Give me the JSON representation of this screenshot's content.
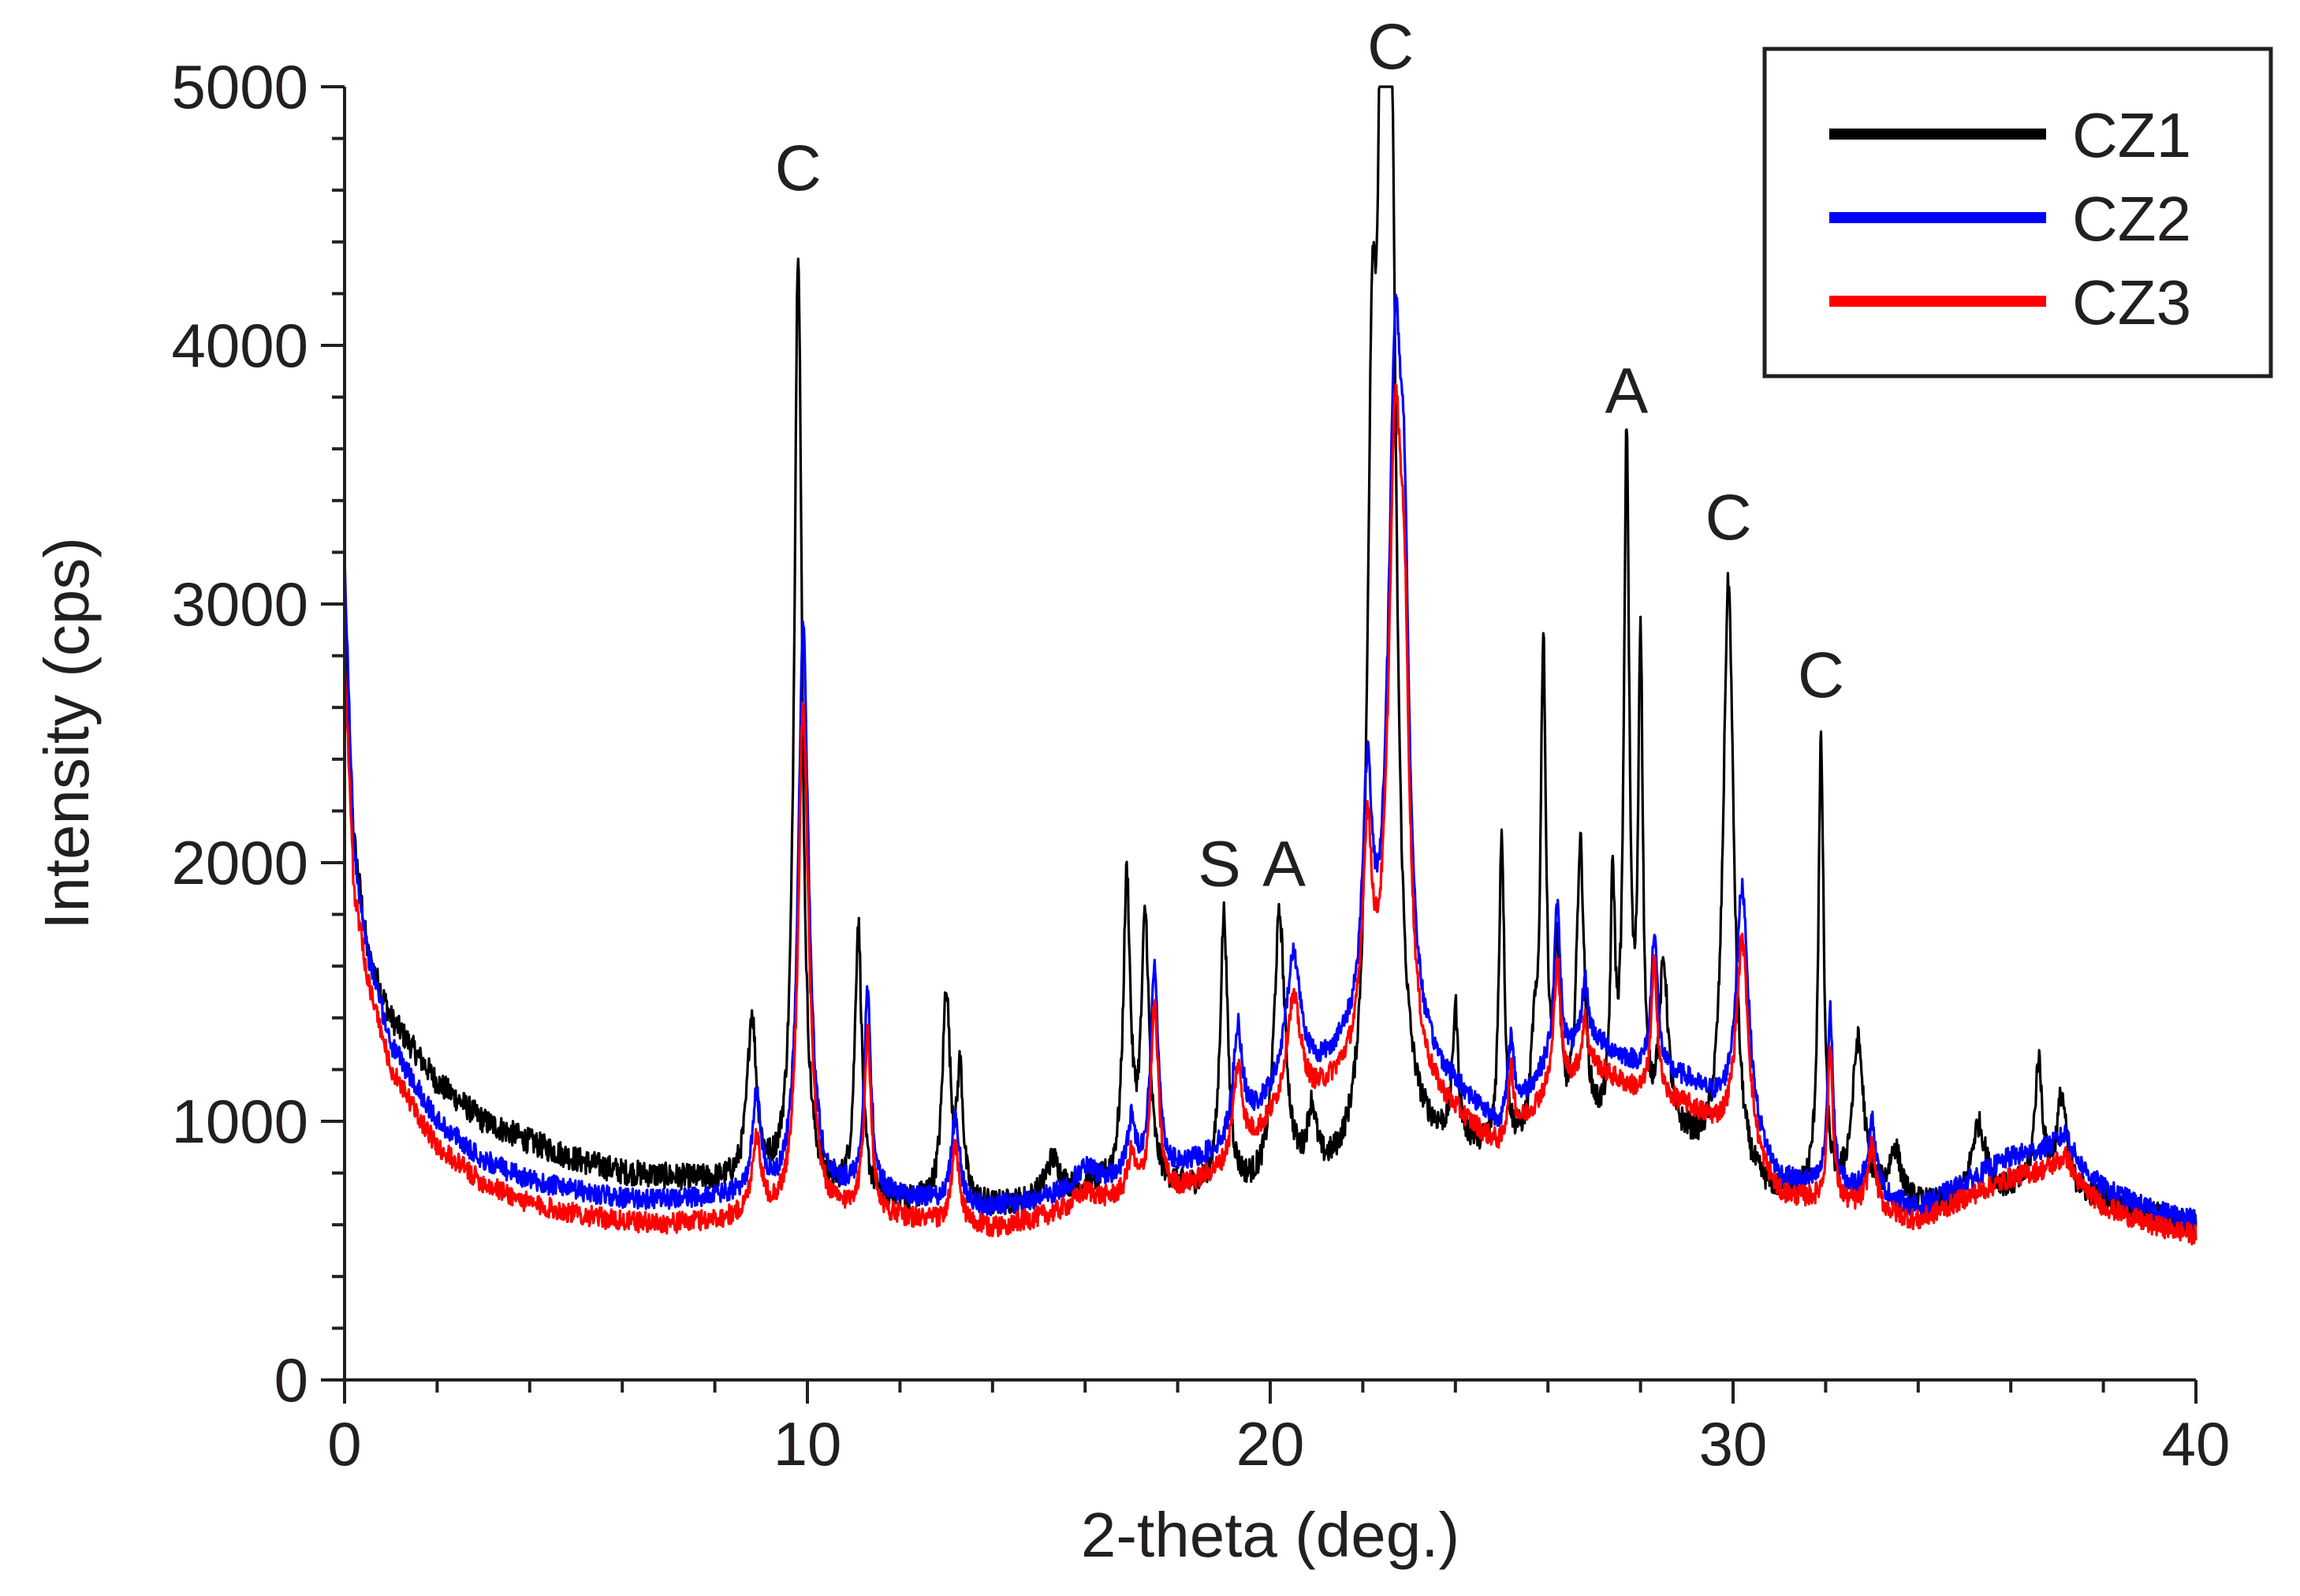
{
  "chart_data": {
    "type": "line",
    "title": "",
    "xlabel": "2-theta (deg.)",
    "ylabel": "Intensity (cps)",
    "xlim": [
      0,
      40
    ],
    "ylim": [
      0,
      5000
    ],
    "x_ticks": [
      0,
      10,
      20,
      30,
      40
    ],
    "y_ticks": [
      0,
      1000,
      2000,
      3000,
      4000,
      5000
    ],
    "x_minor_step": 2,
    "y_minor_step": 200,
    "grid": false,
    "legend_position": "top-right",
    "series": [
      {
        "name": "CZ1",
        "color": "#000000",
        "baseline": [
          [
            0,
            2900
          ],
          [
            0.2,
            2100
          ],
          [
            0.5,
            1650
          ],
          [
            1,
            1400
          ],
          [
            2,
            1150
          ],
          [
            3,
            1000
          ],
          [
            4,
            920
          ],
          [
            5,
            850
          ],
          [
            6,
            800
          ],
          [
            7,
            780
          ],
          [
            8,
            760
          ],
          [
            9,
            740
          ],
          [
            10,
            710
          ],
          [
            11,
            690
          ],
          [
            12,
            680
          ],
          [
            13,
            670
          ],
          [
            14,
            660
          ],
          [
            15,
            680
          ],
          [
            16,
            720
          ],
          [
            17,
            760
          ],
          [
            18,
            720
          ],
          [
            19,
            700
          ],
          [
            20,
            700
          ],
          [
            21,
            720
          ],
          [
            22,
            760
          ],
          [
            23,
            860
          ],
          [
            24,
            880
          ],
          [
            25,
            840
          ],
          [
            26,
            900
          ],
          [
            27,
            920
          ],
          [
            28,
            900
          ],
          [
            29,
            880
          ],
          [
            30,
            720
          ],
          [
            31,
            690
          ],
          [
            32,
            700
          ],
          [
            33,
            680
          ],
          [
            34,
            660
          ],
          [
            35,
            660
          ],
          [
            36,
            720
          ],
          [
            37,
            740
          ],
          [
            38,
            690
          ],
          [
            39,
            640
          ],
          [
            40,
            600
          ]
        ],
        "peaks": [
          [
            8.8,
            640,
            0.12
          ],
          [
            9.8,
            3650,
            0.1
          ],
          [
            11.1,
            1050,
            0.09
          ],
          [
            13.0,
            820,
            0.1
          ],
          [
            13.3,
            480,
            0.08
          ],
          [
            15.3,
            150,
            0.2
          ],
          [
            16.9,
            1150,
            0.09
          ],
          [
            17.3,
            1000,
            0.1
          ],
          [
            19.0,
            1070,
            0.1
          ],
          [
            20.2,
            1050,
            0.15
          ],
          [
            20.9,
            250,
            0.12
          ],
          [
            22.2,
            2550,
            0.12
          ],
          [
            22.4,
            2750,
            0.1
          ],
          [
            22.6,
            3950,
            0.14
          ],
          [
            24.0,
            500,
            0.07
          ],
          [
            25.0,
            1230,
            0.07
          ],
          [
            25.7,
            300,
            0.08
          ],
          [
            25.9,
            1870,
            0.07
          ],
          [
            26.2,
            650,
            0.08
          ],
          [
            26.7,
            1100,
            0.1
          ],
          [
            27.4,
            900,
            0.06
          ],
          [
            27.7,
            2650,
            0.07
          ],
          [
            28.0,
            1850,
            0.06
          ],
          [
            28.5,
            650,
            0.12
          ],
          [
            29.9,
            2330,
            0.14
          ],
          [
            31.9,
            1730,
            0.07
          ],
          [
            32.7,
            600,
            0.15
          ],
          [
            33.5,
            200,
            0.15
          ],
          [
            35.3,
            300,
            0.2
          ],
          [
            36.6,
            480,
            0.1
          ],
          [
            37.1,
            350,
            0.12
          ]
        ],
        "noise": 50
      },
      {
        "name": "CZ2",
        "color": "#0000ff",
        "baseline": [
          [
            0,
            3150
          ],
          [
            0.2,
            2050
          ],
          [
            0.5,
            1650
          ],
          [
            1,
            1300
          ],
          [
            2,
            1000
          ],
          [
            3,
            850
          ],
          [
            4,
            770
          ],
          [
            5,
            730
          ],
          [
            6,
            700
          ],
          [
            7,
            690
          ],
          [
            8,
            700
          ],
          [
            9,
            690
          ],
          [
            10,
            700
          ],
          [
            11,
            720
          ],
          [
            12,
            700
          ],
          [
            13,
            680
          ],
          [
            14,
            660
          ],
          [
            15,
            690
          ],
          [
            16,
            730
          ],
          [
            17,
            780
          ],
          [
            18,
            800
          ],
          [
            19,
            880
          ],
          [
            20,
            1050
          ],
          [
            21,
            1150
          ],
          [
            22,
            1300
          ],
          [
            23,
            1200
          ],
          [
            24,
            1100
          ],
          [
            25,
            960
          ],
          [
            26,
            1200
          ],
          [
            27,
            1300
          ],
          [
            28,
            1200
          ],
          [
            29,
            1150
          ],
          [
            30,
            1000
          ],
          [
            31,
            760
          ],
          [
            32,
            740
          ],
          [
            33,
            720
          ],
          [
            34,
            660
          ],
          [
            35,
            760
          ],
          [
            36,
            860
          ],
          [
            37,
            900
          ],
          [
            38,
            740
          ],
          [
            39,
            660
          ],
          [
            40,
            620
          ]
        ],
        "peaks": [
          [
            8.9,
            380,
            0.12
          ],
          [
            9.9,
            1930,
            0.12
          ],
          [
            10.0,
            400,
            0.15
          ],
          [
            11.3,
            760,
            0.09
          ],
          [
            13.2,
            350,
            0.1
          ],
          [
            16.0,
            80,
            0.3
          ],
          [
            17.0,
            200,
            0.1
          ],
          [
            17.5,
            800,
            0.1
          ],
          [
            19.3,
            420,
            0.12
          ],
          [
            20.5,
            520,
            0.2
          ],
          [
            22.1,
            900,
            0.12
          ],
          [
            22.7,
            2550,
            0.18
          ],
          [
            22.9,
            1250,
            0.12
          ],
          [
            25.2,
            300,
            0.08
          ],
          [
            26.2,
            600,
            0.08
          ],
          [
            26.8,
            250,
            0.08
          ],
          [
            28.3,
            550,
            0.08
          ],
          [
            30.2,
            950,
            0.16
          ],
          [
            32.1,
            680,
            0.07
          ],
          [
            33.0,
            280,
            0.1
          ],
          [
            37.2,
            80,
            0.15
          ]
        ],
        "noise": 40
      },
      {
        "name": "CZ3",
        "color": "#ff0000",
        "baseline": [
          [
            0,
            2800
          ],
          [
            0.2,
            1900
          ],
          [
            0.5,
            1550
          ],
          [
            1,
            1200
          ],
          [
            2,
            900
          ],
          [
            3,
            760
          ],
          [
            4,
            680
          ],
          [
            5,
            640
          ],
          [
            6,
            610
          ],
          [
            7,
            600
          ],
          [
            8,
            610
          ],
          [
            9,
            620
          ],
          [
            10,
            620
          ],
          [
            11,
            640
          ],
          [
            12,
            620
          ],
          [
            13,
            600
          ],
          [
            14,
            580
          ],
          [
            15,
            620
          ],
          [
            16,
            660
          ],
          [
            17,
            700
          ],
          [
            18,
            720
          ],
          [
            19,
            800
          ],
          [
            20,
            960
          ],
          [
            21,
            1060
          ],
          [
            22,
            1200
          ],
          [
            23,
            1100
          ],
          [
            24,
            1000
          ],
          [
            25,
            880
          ],
          [
            26,
            1100
          ],
          [
            27,
            1200
          ],
          [
            28,
            1100
          ],
          [
            29,
            1050
          ],
          [
            30,
            920
          ],
          [
            31,
            700
          ],
          [
            32,
            680
          ],
          [
            33,
            660
          ],
          [
            34,
            610
          ],
          [
            35,
            700
          ],
          [
            36,
            780
          ],
          [
            37,
            820
          ],
          [
            38,
            670
          ],
          [
            39,
            600
          ],
          [
            40,
            560
          ]
        ],
        "peaks": [
          [
            8.9,
            300,
            0.12
          ],
          [
            9.9,
            1730,
            0.12
          ],
          [
            10.0,
            350,
            0.15
          ],
          [
            11.3,
            690,
            0.09
          ],
          [
            13.2,
            300,
            0.1
          ],
          [
            16.0,
            60,
            0.3
          ],
          [
            17.0,
            150,
            0.1
          ],
          [
            17.5,
            720,
            0.1
          ],
          [
            19.3,
            350,
            0.12
          ],
          [
            20.5,
            440,
            0.2
          ],
          [
            22.1,
            800,
            0.12
          ],
          [
            22.7,
            2350,
            0.18
          ],
          [
            22.9,
            1100,
            0.12
          ],
          [
            25.2,
            260,
            0.08
          ],
          [
            26.2,
            500,
            0.08
          ],
          [
            26.8,
            200,
            0.08
          ],
          [
            28.3,
            520,
            0.08
          ],
          [
            30.2,
            820,
            0.16
          ],
          [
            32.1,
            600,
            0.07
          ],
          [
            33.0,
            240,
            0.1
          ],
          [
            37.2,
            70,
            0.15
          ]
        ],
        "noise": 40
      }
    ],
    "annotations": [
      {
        "text": "C",
        "x": 9.8,
        "y": 4600
      },
      {
        "text": "C",
        "x": 22.6,
        "y": 5070
      },
      {
        "text": "S",
        "x": 18.9,
        "y": 1910
      },
      {
        "text": "A",
        "x": 20.3,
        "y": 1910
      },
      {
        "text": "A",
        "x": 27.7,
        "y": 3740
      },
      {
        "text": "C",
        "x": 29.9,
        "y": 3250
      },
      {
        "text": "C",
        "x": 31.9,
        "y": 2640
      }
    ]
  }
}
